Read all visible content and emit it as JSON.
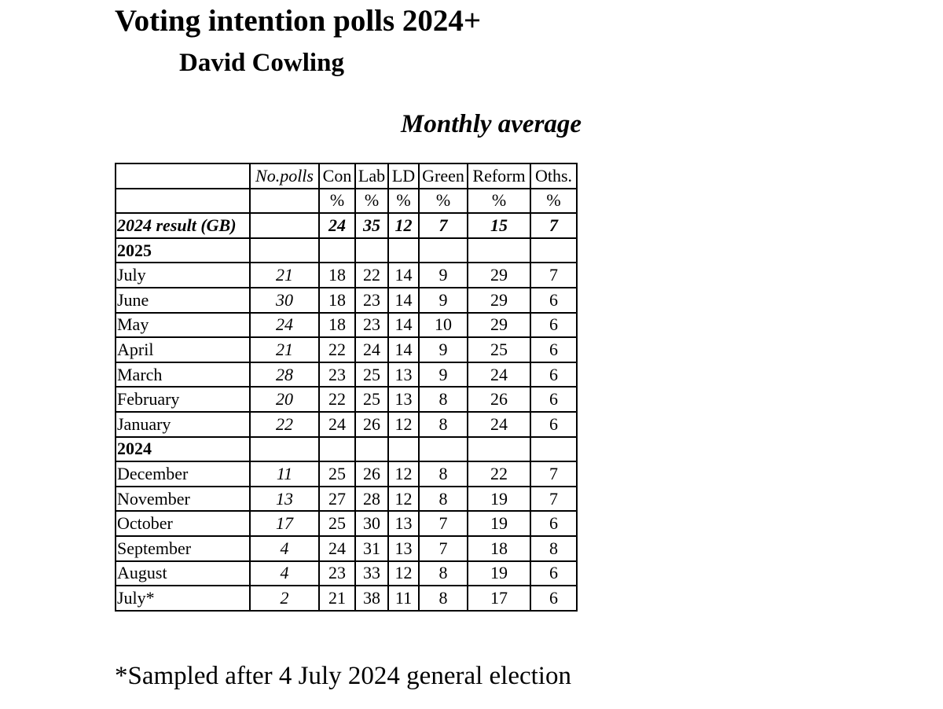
{
  "title": "Voting intention polls 2024+",
  "author": "David Cowling",
  "subtitle": "Monthly average",
  "footnote": "*Sampled after 4 July 2024 general election",
  "table": {
    "header": {
      "label": "",
      "npolls": "No.polls",
      "con": "Con",
      "lab": "Lab",
      "ld": "LD",
      "green": "Green",
      "reform": "Reform",
      "oths": "Oths."
    },
    "units": {
      "label": "",
      "npolls": "",
      "con": "%",
      "lab": "%",
      "ld": "%",
      "green": "%",
      "reform": "%",
      "oths": "%"
    },
    "result": {
      "label": "2024 result (GB)",
      "npolls": "",
      "con": "24",
      "lab": "35",
      "ld": "12",
      "green": "7",
      "reform": "15",
      "oths": "7"
    },
    "sections": [
      {
        "year": "2025",
        "rows": [
          {
            "label": "July",
            "npolls": "21",
            "con": "18",
            "lab": "22",
            "ld": "14",
            "green": "9",
            "reform": "29",
            "oths": "7"
          },
          {
            "label": "June",
            "npolls": "30",
            "con": "18",
            "lab": "23",
            "ld": "14",
            "green": "9",
            "reform": "29",
            "oths": "6"
          },
          {
            "label": "May",
            "npolls": "24",
            "con": "18",
            "lab": "23",
            "ld": "14",
            "green": "10",
            "reform": "29",
            "oths": "6"
          },
          {
            "label": "April",
            "npolls": "21",
            "con": "22",
            "lab": "24",
            "ld": "14",
            "green": "9",
            "reform": "25",
            "oths": "6"
          },
          {
            "label": "March",
            "npolls": "28",
            "con": "23",
            "lab": "25",
            "ld": "13",
            "green": "9",
            "reform": "24",
            "oths": "6"
          },
          {
            "label": "February",
            "npolls": "20",
            "con": "22",
            "lab": "25",
            "ld": "13",
            "green": "8",
            "reform": "26",
            "oths": "6"
          },
          {
            "label": "January",
            "npolls": "22",
            "con": "24",
            "lab": "26",
            "ld": "12",
            "green": "8",
            "reform": "24",
            "oths": "6"
          }
        ]
      },
      {
        "year": "2024",
        "rows": [
          {
            "label": "December",
            "npolls": "11",
            "con": "25",
            "lab": "26",
            "ld": "12",
            "green": "8",
            "reform": "22",
            "oths": "7"
          },
          {
            "label": "November",
            "npolls": "13",
            "con": "27",
            "lab": "28",
            "ld": "12",
            "green": "8",
            "reform": "19",
            "oths": "7"
          },
          {
            "label": "October",
            "npolls": "17",
            "con": "25",
            "lab": "30",
            "ld": "13",
            "green": "7",
            "reform": "19",
            "oths": "6"
          },
          {
            "label": "September",
            "npolls": "4",
            "con": "24",
            "lab": "31",
            "ld": "13",
            "green": "7",
            "reform": "18",
            "oths": "8"
          },
          {
            "label": "August",
            "npolls": "4",
            "con": "23",
            "lab": "33",
            "ld": "12",
            "green": "8",
            "reform": "19",
            "oths": "6"
          },
          {
            "label": "July*",
            "npolls": "2",
            "con": "21",
            "lab": "38",
            "ld": "11",
            "green": "8",
            "reform": "17",
            "oths": "6"
          }
        ]
      }
    ]
  }
}
